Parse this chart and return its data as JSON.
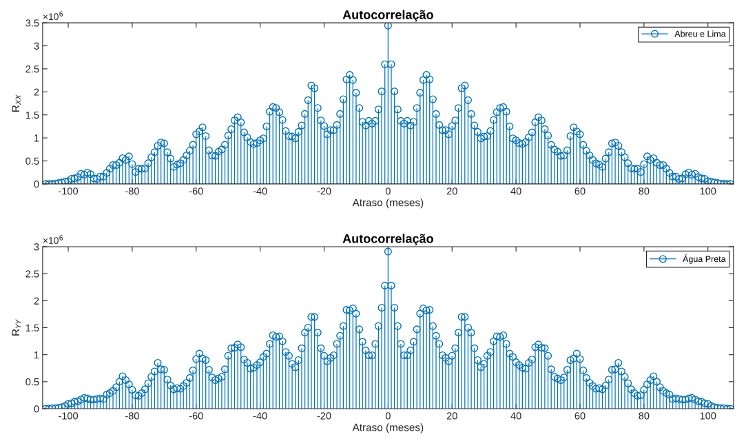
{
  "chart_data": [
    {
      "type": "lollipop",
      "title": "Autocorrelação",
      "xlabel": "Atraso (meses)",
      "ylabel": "R$_{XX}$",
      "annotations": [
        "×10$^{6}$"
      ],
      "legend": "top right",
      "marker": "circle",
      "x": [
        -107,
        -106,
        -105,
        -104,
        -103,
        -102,
        -101,
        -100,
        -99,
        -98,
        -97,
        -96,
        -95,
        -94,
        -93,
        -92,
        -91,
        -90,
        -89,
        -88,
        -87,
        -86,
        -85,
        -84,
        -83,
        -82,
        -81,
        -80,
        -79,
        -78,
        -77,
        -76,
        -75,
        -74,
        -73,
        -72,
        -71,
        -70,
        -69,
        -68,
        -67,
        -66,
        -65,
        -64,
        -63,
        -62,
        -61,
        -60,
        -59,
        -58,
        -57,
        -56,
        -55,
        -54,
        -53,
        -52,
        -51,
        -50,
        -49,
        -48,
        -47,
        -46,
        -45,
        -44,
        -43,
        -42,
        -41,
        -40,
        -39,
        -38,
        -37,
        -36,
        -35,
        -34,
        -33,
        -32,
        -31,
        -30,
        -29,
        -28,
        -27,
        -26,
        -25,
        -24,
        -23,
        -22,
        -21,
        -20,
        -19,
        -18,
        -17,
        -16,
        -15,
        -14,
        -13,
        -12,
        -11,
        -10,
        -9,
        -8,
        -7,
        -6,
        -5,
        -4,
        -3,
        -2,
        -1,
        0,
        1,
        2,
        3,
        4,
        5,
        6,
        7,
        8,
        9,
        10,
        11,
        12,
        13,
        14,
        15,
        16,
        17,
        18,
        19,
        20,
        21,
        22,
        23,
        24,
        25,
        26,
        27,
        28,
        29,
        30,
        31,
        32,
        33,
        34,
        35,
        36,
        37,
        38,
        39,
        40,
        41,
        42,
        43,
        44,
        45,
        46,
        47,
        48,
        49,
        50,
        51,
        52,
        53,
        54,
        55,
        56,
        57,
        58,
        59,
        60,
        61,
        62,
        63,
        64,
        65,
        66,
        67,
        68,
        69,
        70,
        71,
        72,
        73,
        74,
        75,
        76,
        77,
        78,
        79,
        80,
        81,
        82,
        83,
        84,
        85,
        86,
        87,
        88,
        89,
        90,
        91,
        92,
        93,
        94,
        95,
        96,
        97,
        98,
        99,
        100,
        101,
        102,
        103,
        104,
        105,
        106,
        107
      ],
      "series": [
        {
          "name": "Abreu e Lima",
          "color": "#0072bd",
          "values": [
            0,
            0,
            0,
            0.01,
            0.02,
            0.03,
            0.05,
            0.06,
            0.11,
            0.12,
            0.15,
            0.22,
            0.2,
            0.25,
            0.21,
            0.12,
            0.11,
            0.16,
            0.16,
            0.24,
            0.33,
            0.41,
            0.41,
            0.46,
            0.56,
            0.52,
            0.6,
            0.43,
            0.26,
            0.33,
            0.33,
            0.34,
            0.45,
            0.58,
            0.69,
            0.83,
            0.9,
            0.88,
            0.69,
            0.55,
            0.37,
            0.42,
            0.45,
            0.52,
            0.62,
            0.72,
            0.85,
            1.08,
            1.14,
            1.23,
            1.04,
            0.73,
            0.62,
            0.61,
            0.7,
            0.75,
            0.85,
            1.05,
            1.19,
            1.38,
            1.45,
            1.34,
            1.12,
            1.01,
            0.91,
            0.87,
            0.89,
            0.95,
            0.99,
            1.25,
            1.57,
            1.67,
            1.65,
            1.56,
            1.39,
            1.15,
            1.04,
            1.03,
            0.99,
            1.13,
            1.27,
            1.52,
            1.82,
            2.14,
            2.08,
            1.65,
            1.38,
            1.26,
            1.08,
            1.17,
            1.17,
            1.28,
            1.52,
            1.84,
            2.27,
            2.37,
            2.26,
            1.98,
            1.65,
            1.35,
            1.27,
            1.37,
            1.31,
            1.37,
            1.62,
            2.01,
            2.6,
            3.44,
            2.6,
            2.01,
            1.62,
            1.37,
            1.31,
            1.37,
            1.27,
            1.35,
            1.65,
            1.98,
            2.26,
            2.37,
            2.27,
            1.84,
            1.52,
            1.28,
            1.17,
            1.17,
            1.08,
            1.26,
            1.38,
            1.65,
            2.08,
            2.14,
            1.82,
            1.52,
            1.27,
            1.13,
            0.99,
            1.03,
            1.04,
            1.15,
            1.39,
            1.56,
            1.65,
            1.67,
            1.57,
            1.25,
            0.99,
            0.95,
            0.89,
            0.87,
            0.91,
            1.01,
            1.12,
            1.34,
            1.45,
            1.38,
            1.19,
            1.05,
            0.85,
            0.75,
            0.7,
            0.61,
            0.62,
            0.73,
            1.04,
            1.23,
            1.14,
            1.08,
            0.85,
            0.72,
            0.62,
            0.52,
            0.45,
            0.42,
            0.37,
            0.55,
            0.69,
            0.88,
            0.9,
            0.83,
            0.69,
            0.58,
            0.45,
            0.34,
            0.33,
            0.33,
            0.26,
            0.43,
            0.6,
            0.52,
            0.56,
            0.46,
            0.41,
            0.41,
            0.33,
            0.24,
            0.16,
            0.16,
            0.11,
            0.12,
            0.21,
            0.25,
            0.2,
            0.22,
            0.15,
            0.12,
            0.11,
            0.06,
            0.05,
            0.03,
            0.02,
            0.01,
            0,
            0,
            0
          ]
        }
      ],
      "xlim": [
        -108,
        108
      ],
      "ylim": [
        0,
        3.5
      ],
      "xticks": [
        -100,
        -80,
        -60,
        -40,
        -20,
        0,
        20,
        40,
        60,
        80,
        100
      ],
      "yticks": [
        0,
        0.5,
        1,
        1.5,
        2,
        2.5,
        3,
        3.5
      ]
    },
    {
      "type": "lollipop",
      "title": "Autocorrelação",
      "xlabel": "Atraso (meses)",
      "ylabel": "R$_{YY}$",
      "annotations": [
        "×10$^{6}$"
      ],
      "legend": "top right",
      "marker": "circle",
      "x": [
        -107,
        -106,
        -105,
        -104,
        -103,
        -102,
        -101,
        -100,
        -99,
        -98,
        -97,
        -96,
        -95,
        -94,
        -93,
        -92,
        -91,
        -90,
        -89,
        -88,
        -87,
        -86,
        -85,
        -84,
        -83,
        -82,
        -81,
        -80,
        -79,
        -78,
        -77,
        -76,
        -75,
        -74,
        -73,
        -72,
        -71,
        -70,
        -69,
        -68,
        -67,
        -66,
        -65,
        -64,
        -63,
        -62,
        -61,
        -60,
        -59,
        -58,
        -57,
        -56,
        -55,
        -54,
        -53,
        -52,
        -51,
        -50,
        -49,
        -48,
        -47,
        -46,
        -45,
        -44,
        -43,
        -42,
        -41,
        -40,
        -39,
        -38,
        -37,
        -36,
        -35,
        -34,
        -33,
        -32,
        -31,
        -30,
        -29,
        -28,
        -27,
        -26,
        -25,
        -24,
        -23,
        -22,
        -21,
        -20,
        -19,
        -18,
        -17,
        -16,
        -15,
        -14,
        -13,
        -12,
        -11,
        -10,
        -9,
        -8,
        -7,
        -6,
        -5,
        -4,
        -3,
        -2,
        -1,
        0,
        1,
        2,
        3,
        4,
        5,
        6,
        7,
        8,
        9,
        10,
        11,
        12,
        13,
        14,
        15,
        16,
        17,
        18,
        19,
        20,
        21,
        22,
        23,
        24,
        25,
        26,
        27,
        28,
        29,
        30,
        31,
        32,
        33,
        34,
        35,
        36,
        37,
        38,
        39,
        40,
        41,
        42,
        43,
        44,
        45,
        46,
        47,
        48,
        49,
        50,
        51,
        52,
        53,
        54,
        55,
        56,
        57,
        58,
        59,
        60,
        61,
        62,
        63,
        64,
        65,
        66,
        67,
        68,
        69,
        70,
        71,
        72,
        73,
        74,
        75,
        76,
        77,
        78,
        79,
        80,
        81,
        82,
        83,
        84,
        85,
        86,
        87,
        88,
        89,
        90,
        91,
        92,
        93,
        94,
        95,
        96,
        97,
        98,
        99,
        100,
        101,
        102,
        103,
        104,
        105,
        106,
        107
      ],
      "series": [
        {
          "name": "Água Preta",
          "color": "#0072bd",
          "values": [
            0,
            0,
            0.01,
            0.01,
            0.02,
            0.03,
            0.05,
            0.09,
            0.1,
            0.13,
            0.14,
            0.17,
            0.2,
            0.19,
            0.17,
            0.17,
            0.18,
            0.19,
            0.18,
            0.26,
            0.29,
            0.33,
            0.4,
            0.5,
            0.6,
            0.53,
            0.45,
            0.35,
            0.25,
            0.24,
            0.29,
            0.36,
            0.47,
            0.59,
            0.69,
            0.85,
            0.73,
            0.72,
            0.54,
            0.43,
            0.36,
            0.38,
            0.37,
            0.42,
            0.48,
            0.57,
            0.71,
            0.92,
            1.02,
            0.93,
            0.9,
            0.72,
            0.58,
            0.53,
            0.56,
            0.59,
            0.73,
            0.98,
            1.12,
            1.13,
            1.19,
            1.14,
            0.91,
            0.85,
            0.74,
            0.76,
            0.81,
            0.86,
            0.96,
            1.02,
            1.2,
            1.36,
            1.33,
            1.34,
            1.25,
            1.05,
            0.98,
            0.83,
            0.77,
            0.9,
            1.12,
            1.41,
            1.5,
            1.7,
            1.7,
            1.41,
            1.12,
            0.98,
            0.88,
            0.94,
            0.99,
            1.2,
            1.35,
            1.53,
            1.83,
            1.82,
            1.86,
            1.76,
            1.47,
            1.24,
            1.08,
            0.99,
            0.99,
            1.2,
            1.53,
            1.87,
            2.28,
            2.91,
            2.28,
            1.87,
            1.53,
            1.2,
            0.99,
            0.99,
            1.08,
            1.24,
            1.47,
            1.76,
            1.86,
            1.82,
            1.83,
            1.53,
            1.35,
            1.2,
            0.99,
            0.94,
            0.88,
            0.98,
            1.12,
            1.41,
            1.7,
            1.7,
            1.5,
            1.41,
            1.12,
            0.9,
            0.77,
            0.83,
            0.98,
            1.05,
            1.25,
            1.34,
            1.33,
            1.36,
            1.2,
            1.02,
            0.96,
            0.86,
            0.81,
            0.76,
            0.74,
            0.85,
            0.91,
            1.14,
            1.19,
            1.13,
            1.12,
            0.98,
            0.73,
            0.59,
            0.56,
            0.53,
            0.58,
            0.72,
            0.9,
            0.93,
            1.02,
            0.92,
            0.71,
            0.57,
            0.48,
            0.42,
            0.37,
            0.38,
            0.36,
            0.43,
            0.54,
            0.72,
            0.73,
            0.85,
            0.69,
            0.59,
            0.47,
            0.36,
            0.29,
            0.24,
            0.25,
            0.35,
            0.45,
            0.53,
            0.6,
            0.5,
            0.4,
            0.33,
            0.29,
            0.26,
            0.18,
            0.19,
            0.18,
            0.17,
            0.17,
            0.19,
            0.2,
            0.17,
            0.14,
            0.13,
            0.1,
            0.09,
            0.05,
            0.03,
            0.02,
            0.01,
            0.01,
            0,
            0
          ]
        }
      ],
      "xlim": [
        -108,
        108
      ],
      "ylim": [
        0,
        3
      ],
      "xticks": [
        -100,
        -80,
        -60,
        -40,
        -20,
        0,
        20,
        40,
        60,
        80,
        100
      ],
      "yticks": [
        0,
        0.5,
        1,
        1.5,
        2,
        2.5,
        3
      ]
    }
  ]
}
